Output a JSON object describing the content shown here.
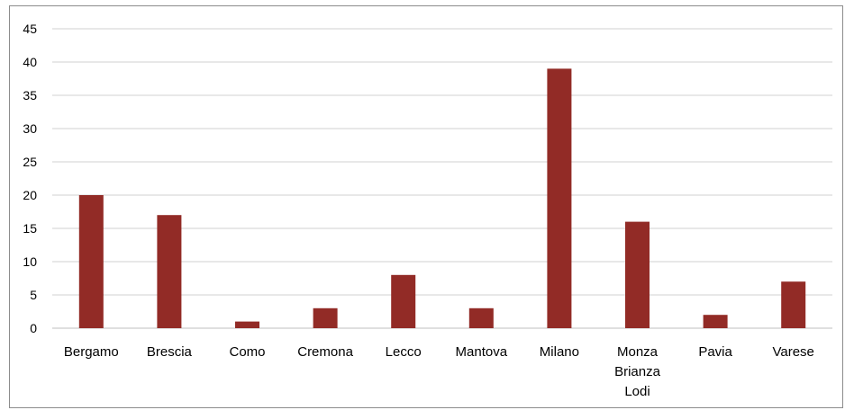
{
  "chart_data": {
    "type": "bar",
    "title": "",
    "xlabel": "",
    "ylabel": "",
    "categories": [
      [
        "Bergamo"
      ],
      [
        "Brescia"
      ],
      [
        "Como"
      ],
      [
        "Cremona"
      ],
      [
        "Lecco"
      ],
      [
        "Mantova"
      ],
      [
        "Milano"
      ],
      [
        "Monza",
        "Brianza",
        "Lodi"
      ],
      [
        "Pavia"
      ],
      [
        "Varese"
      ]
    ],
    "values": [
      20,
      17,
      1,
      3,
      8,
      3,
      39,
      16,
      2,
      7
    ],
    "ylim": [
      0,
      45
    ],
    "yticks": [
      0,
      5,
      10,
      15,
      20,
      25,
      30,
      35,
      40,
      45
    ],
    "grid": true,
    "legend": "none",
    "bar_color": "#922b26"
  }
}
